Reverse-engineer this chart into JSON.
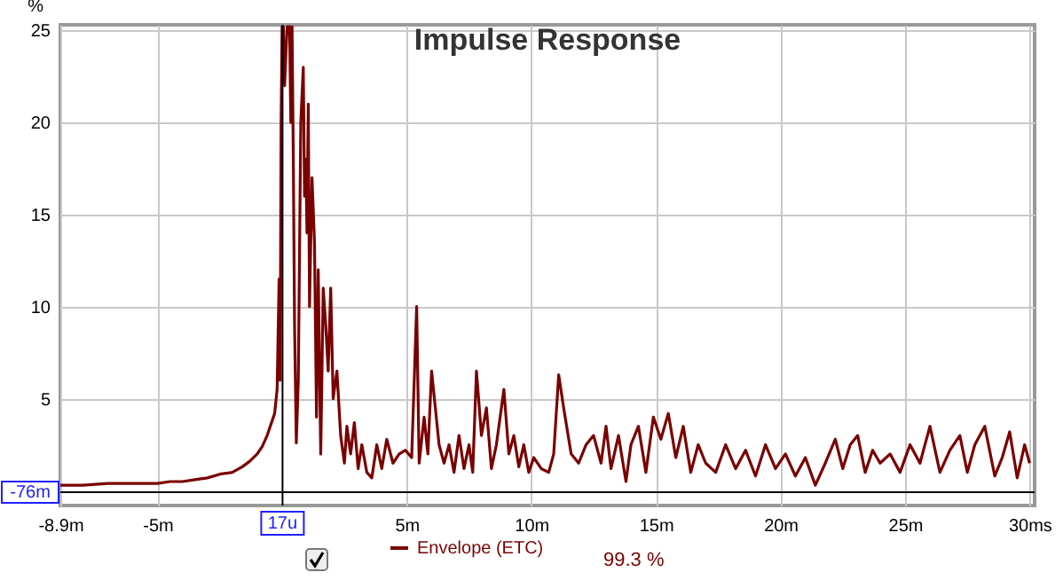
{
  "chart_data": {
    "type": "line",
    "title": "Impulse Response",
    "ylabel": "%",
    "xlim": [
      -8.9,
      30.2
    ],
    "ylim": [
      -0.8,
      25.3
    ],
    "xticks": [
      {
        "value": -8.9,
        "label": "-8.9m"
      },
      {
        "value": -5,
        "label": "-5m"
      },
      {
        "value": 5,
        "label": "5m"
      },
      {
        "value": 10,
        "label": "10m"
      },
      {
        "value": 15,
        "label": "15m"
      },
      {
        "value": 20,
        "label": "20m"
      },
      {
        "value": 25,
        "label": "25m"
      },
      {
        "value": 30,
        "label": "30ms"
      }
    ],
    "yticks": [
      5,
      10,
      15,
      20,
      25
    ],
    "grid": true,
    "legend": "bottom",
    "line_style": "solid",
    "marker": "none",
    "ref_lines": [
      {
        "axis": "x",
        "value": 0.017,
        "label": "17u",
        "color": "#000000"
      },
      {
        "axis": "y",
        "value": -0.076,
        "label": "-76m",
        "color": "#000000"
      }
    ],
    "annotations": [
      "99.3 %"
    ],
    "series": [
      {
        "name": "Envelope (ETC)",
        "color": "#7a0000",
        "x": [
          -8.9,
          -8,
          -7,
          -6,
          -5,
          -4.5,
          -4,
          -3.5,
          -3,
          -2.5,
          -2,
          -1.6,
          -1.3,
          -1,
          -0.8,
          -0.6,
          -0.45,
          -0.3,
          -0.2,
          -0.12,
          -0.08,
          -0.04,
          0,
          0.05,
          0.1,
          0.2,
          0.3,
          0.35,
          0.4,
          0.45,
          0.5,
          0.57,
          0.65,
          0.75,
          0.85,
          0.9,
          0.95,
          1.0,
          1.05,
          1.1,
          1.2,
          1.3,
          1.38,
          1.45,
          1.55,
          1.65,
          1.75,
          1.85,
          1.95,
          2.05,
          2.2,
          2.35,
          2.5,
          2.6,
          2.75,
          2.9,
          3.05,
          3.2,
          3.4,
          3.6,
          3.8,
          4.0,
          4.2,
          4.45,
          4.7,
          4.95,
          5.2,
          5.4,
          5.5,
          5.7,
          5.85,
          6.0,
          6.15,
          6.3,
          6.5,
          6.7,
          6.9,
          7.1,
          7.3,
          7.5,
          7.65,
          7.8,
          8.0,
          8.2,
          8.4,
          8.6,
          8.9,
          9.1,
          9.3,
          9.5,
          9.7,
          9.9,
          10.1,
          10.4,
          10.7,
          10.9,
          11.1,
          11.3,
          11.6,
          11.9,
          12.2,
          12.5,
          12.8,
          13.0,
          13.2,
          13.5,
          13.8,
          14.0,
          14.3,
          14.6,
          14.9,
          15.2,
          15.5,
          15.8,
          16.1,
          16.4,
          16.7,
          17.0,
          17.4,
          17.8,
          18.2,
          18.6,
          19.0,
          19.4,
          19.8,
          20.2,
          20.6,
          21.0,
          21.4,
          21.8,
          22.2,
          22.5,
          22.8,
          23.1,
          23.4,
          23.7,
          24.0,
          24.4,
          24.8,
          25.2,
          25.6,
          26.0,
          26.4,
          26.8,
          27.2,
          27.5,
          27.8,
          28.2,
          28.6,
          28.9,
          29.2,
          29.5,
          29.8,
          30.0
        ],
        "values": [
          0.3,
          0.3,
          0.4,
          0.4,
          0.4,
          0.5,
          0.5,
          0.6,
          0.7,
          0.9,
          1.0,
          1.3,
          1.6,
          2.0,
          2.4,
          3.0,
          3.6,
          4.2,
          5.5,
          11.5,
          6,
          20,
          25.2,
          25.2,
          22,
          25.2,
          25.2,
          20,
          25.2,
          18,
          9,
          2.6,
          6,
          20,
          23,
          16,
          18,
          14,
          21,
          10,
          17,
          13.5,
          4,
          12,
          2,
          11,
          9,
          6.5,
          11,
          5,
          6.5,
          3,
          1.5,
          3.5,
          2,
          3.7,
          1.2,
          2.5,
          1,
          0.7,
          2.5,
          1.2,
          2.8,
          1.5,
          2,
          2.2,
          1.8,
          10,
          1.5,
          4,
          2,
          6.5,
          4.5,
          2.5,
          1.5,
          2.5,
          1,
          3,
          1.2,
          2.5,
          1,
          6.5,
          3,
          4.5,
          1.2,
          2.5,
          5.5,
          2,
          3,
          1.3,
          2.5,
          1,
          1.8,
          1.2,
          1,
          2,
          6.3,
          4.5,
          2,
          1.5,
          2.5,
          3,
          1.5,
          3.5,
          1.2,
          3,
          0.5,
          2.5,
          3.5,
          1,
          4,
          2.8,
          4.2,
          1.8,
          3.5,
          1,
          2.5,
          1.5,
          1,
          2.5,
          1.2,
          2.2,
          0.8,
          2.5,
          1.2,
          2,
          0.8,
          1.8,
          0.3,
          1.5,
          2.8,
          1.2,
          2.5,
          3,
          1,
          2.2,
          1.5,
          2,
          1,
          2.5,
          1.5,
          3.5,
          1,
          2.2,
          3,
          1,
          2.5,
          3.5,
          0.8,
          1.8,
          3.2,
          0.7,
          2.5,
          1.5
        ]
      }
    ]
  }
}
